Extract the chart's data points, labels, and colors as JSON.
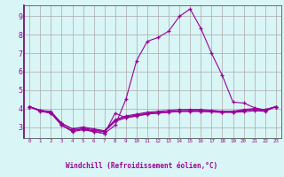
{
  "x": [
    0,
    1,
    2,
    3,
    4,
    5,
    6,
    7,
    8,
    9,
    10,
    11,
    12,
    13,
    14,
    15,
    16,
    17,
    18,
    19,
    20,
    21,
    22,
    23
  ],
  "line1": [
    4.1,
    3.9,
    3.8,
    3.1,
    2.8,
    2.9,
    2.8,
    2.75,
    3.3,
    3.5,
    3.6,
    3.7,
    3.75,
    3.8,
    3.85,
    3.85,
    3.85,
    3.82,
    3.8,
    3.8,
    3.9,
    3.95,
    3.9,
    4.1
  ],
  "line2": [
    4.1,
    3.85,
    3.75,
    3.1,
    2.75,
    2.85,
    2.75,
    2.65,
    3.75,
    3.5,
    3.6,
    3.7,
    3.78,
    3.82,
    3.85,
    3.85,
    3.85,
    3.82,
    3.8,
    3.8,
    3.82,
    3.88,
    3.85,
    4.1
  ],
  "line3": [
    4.1,
    3.9,
    3.85,
    3.2,
    2.9,
    3.0,
    2.9,
    2.8,
    3.4,
    3.6,
    3.7,
    3.8,
    3.85,
    3.9,
    3.95,
    3.95,
    3.95,
    3.9,
    3.85,
    3.85,
    3.95,
    4.0,
    3.95,
    4.1
  ],
  "line_spike": [
    4.1,
    3.9,
    3.75,
    3.1,
    2.8,
    2.9,
    2.75,
    2.65,
    3.1,
    4.5,
    6.6,
    7.65,
    7.85,
    8.2,
    9.0,
    9.4,
    8.35,
    7.0,
    5.8,
    4.35,
    4.3,
    4.05,
    3.9,
    4.1
  ],
  "line_flat": [
    4.1,
    3.9,
    3.8,
    3.2,
    2.9,
    2.95,
    2.85,
    2.75,
    3.35,
    3.55,
    3.65,
    3.75,
    3.78,
    3.82,
    3.88,
    3.9,
    3.9,
    3.88,
    3.85,
    3.85,
    3.9,
    3.95,
    3.93,
    4.1
  ],
  "color": "#990099",
  "bg_color": "#d9f5f5",
  "grid_color": "#aaaaaa",
  "ylabel_values": [
    3,
    4,
    5,
    6,
    7,
    8,
    9
  ],
  "xlabel_values": [
    0,
    1,
    2,
    3,
    4,
    5,
    6,
    7,
    8,
    9,
    10,
    11,
    12,
    13,
    14,
    15,
    16,
    17,
    18,
    19,
    20,
    21,
    22,
    23
  ],
  "xlabel": "Windchill (Refroidissement éolien,°C)",
  "ylim": [
    2.4,
    9.6
  ],
  "xlim": [
    -0.5,
    23.5
  ],
  "spine_color": "#555555",
  "left_spine_color": "#660066"
}
